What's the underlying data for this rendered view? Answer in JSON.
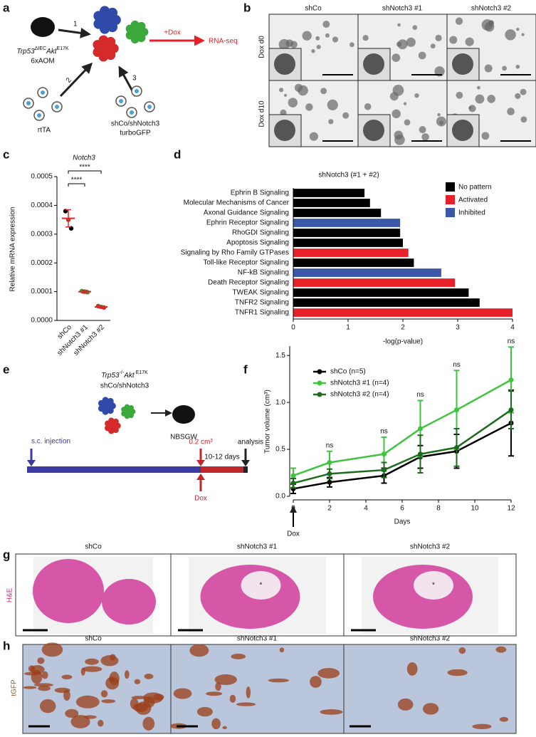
{
  "panel_labels": [
    "a",
    "b",
    "c",
    "d",
    "e",
    "f",
    "g",
    "h"
  ],
  "panel_a": {
    "step_labels": [
      "1",
      "2",
      "3"
    ],
    "genotype": [
      "Trp53",
      "ΔIEC",
      "Akt",
      "E17K"
    ],
    "treatment": "6xAOM",
    "vector_1": "rtTA",
    "vector_2": [
      "shCo/shNotch3",
      "turboGFP"
    ],
    "dox": "+Dox",
    "readout": "RNA-seq"
  },
  "panel_b": {
    "columns": [
      "shCo",
      "shNotch3 #1",
      "shNotch3 #2"
    ],
    "rows": [
      "Dox d0",
      "Dox d10"
    ]
  },
  "chart_data": [
    {
      "type": "dot",
      "title": "Notch3",
      "y_label": "Relative mRNA expression",
      "categories": [
        "shCo",
        "shNotch3 #1",
        "shNotch3 #2"
      ],
      "points": [
        [
          0.00038,
          0.00035,
          0.00032
        ],
        [
          0.000102,
          0.0001,
          9.8e-05
        ],
        [
          5e-05,
          4.7e-05,
          4.5e-05
        ]
      ],
      "point_colors": [
        [
          "#000000",
          "#d42a2a",
          "#000000"
        ],
        [
          "#3a9a3a",
          "#d42a2a",
          "#3a9a3a"
        ],
        [
          "#d42a2a",
          "#3a9a3a",
          "#d42a2a"
        ]
      ],
      "means": [
        0.000355,
        0.0001,
        4.7e-05
      ],
      "sd": [
        3e-05,
        5e-06,
        3e-06
      ],
      "mean_color": "#d42a2a",
      "significance_labels": [
        "****",
        "****"
      ],
      "ylim": [
        0,
        0.0005
      ],
      "yticks": [
        {
          "value": 0,
          "label": "0.0000"
        },
        0.0001,
        0.0002,
        0.0003,
        0.0004,
        0.0005
      ]
    },
    {
      "type": "hbar",
      "title": "shNotch3 (#1 + #2)",
      "x_label": "-log(p-value)",
      "categories": [
        "Ephrin B Signaling",
        "Molecular Mechanisms of Cancer",
        "Axonal Guidance Signaling",
        "Ephrin Receptor Signaling",
        "RhoGDI Signaling",
        "Apoptosis Signaling",
        "Signaling by Rho Family GTPases",
        "Toll-like Receptor Signaling",
        "NF-kB Signaling",
        "Death Receptor Signaling",
        "TWEAK Signaling",
        "TNFR2 Signaling",
        "TNFR1 Signaling"
      ],
      "values": [
        1.3,
        1.4,
        1.6,
        1.95,
        1.95,
        2.0,
        2.1,
        2.2,
        2.7,
        2.95,
        3.2,
        3.4,
        4.0
      ],
      "colors": [
        "#000000",
        "#000000",
        "#000000",
        "#3a57a8",
        "#000000",
        "#000000",
        "#e8202a",
        "#000000",
        "#3a57a8",
        "#e8202a",
        "#000000",
        "#000000",
        "#e8202a"
      ],
      "legend": [
        {
          "name": "No pattern",
          "color": "#000000"
        },
        {
          "name": "Activated",
          "color": "#e8202a"
        },
        {
          "name": "Inhibited",
          "color": "#3a57a8"
        }
      ],
      "xlim": [
        0,
        4
      ],
      "xticks": [
        0,
        1,
        2,
        3,
        4
      ]
    },
    {
      "type": "line",
      "x_label": "Days",
      "y_label": "Tumor volume (cm³)",
      "dox_label": "Dox",
      "x": [
        0,
        2,
        5,
        7,
        9,
        12
      ],
      "series": [
        {
          "name": "shCo (n=5)",
          "color": "#000000",
          "values": [
            0.08,
            0.15,
            0.22,
            0.42,
            0.48,
            0.78
          ],
          "errors": [
            0.05,
            0.05,
            0.08,
            0.12,
            0.18,
            0.35
          ]
        },
        {
          "name": "shNotch3 #1 (n=4)",
          "color": "#3ec43e",
          "values": [
            0.22,
            0.36,
            0.45,
            0.72,
            0.92,
            1.24
          ],
          "errors": [
            0.08,
            0.12,
            0.18,
            0.3,
            0.42,
            0.35
          ]
        },
        {
          "name": "shNotch3 #2 (n=4)",
          "color": "#1d6b1d",
          "values": [
            0.14,
            0.24,
            0.28,
            0.45,
            0.52,
            0.92
          ],
          "errors": [
            0.05,
            0.05,
            0.08,
            0.2,
            0.2,
            0.2
          ]
        }
      ],
      "ns_labels": [
        "ns",
        "ns",
        "ns",
        "ns",
        "ns"
      ],
      "xlim": [
        0,
        12
      ],
      "xticks": [
        0,
        2,
        4,
        6,
        8,
        10,
        12
      ],
      "ylim": [
        0,
        1.6
      ],
      "yticks": [
        {
          "value": 0,
          "label": "0.0"
        },
        0.5,
        {
          "value": 1,
          "label": "1.0"
        },
        1.5
      ]
    }
  ],
  "panel_e": {
    "genotype": [
      "Trp53",
      "-/-",
      "Akt",
      "E17K"
    ],
    "vector": "shCo/shNotch3",
    "host": "NBSGW",
    "injection": "s.c. injection",
    "threshold": "0.2 cm³",
    "duration": "10-12 days",
    "endpoint": "analysis",
    "dox": "Dox"
  },
  "panel_g": {
    "columns": [
      "shCo",
      "shNotch3 #1",
      "shNotch3 #2"
    ],
    "row_label": "H&E",
    "asterisk": "*"
  },
  "panel_h": {
    "columns": [
      "shCo",
      "shNotch3 #1",
      "shNotch3 #2"
    ],
    "row_label": "tGFP"
  }
}
